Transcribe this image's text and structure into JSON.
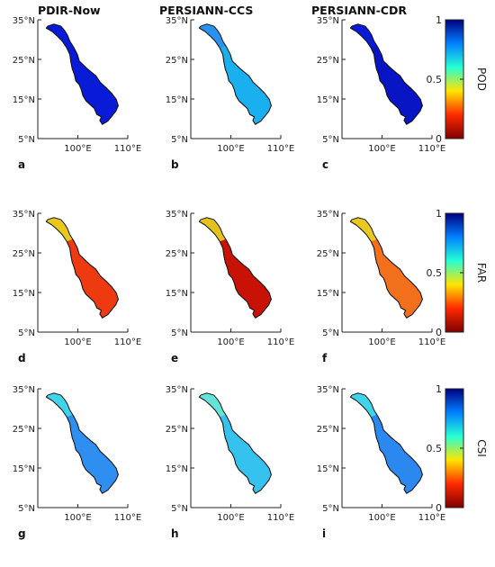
{
  "columns": [
    "PDIR-Now",
    "PERSIANN-CCS",
    "PERSIANN-CDR"
  ],
  "x_ticks": [
    "100°E",
    "110°E"
  ],
  "y_ticks": [
    "35°N",
    "25°N",
    "15°N",
    "5°N"
  ],
  "colorbar_ticks": [
    "1",
    "0.5",
    "0"
  ],
  "colormap": [
    "#7f0000",
    "#ff2a00",
    "#ffe400",
    "#26ffd4",
    "#0080ff",
    "#00007f"
  ],
  "chart_data": [
    {
      "type": "heatmap",
      "metric": "POD",
      "colorbar_label": "POD",
      "clim": [
        0,
        1
      ],
      "lon_lim": [
        92,
        110
      ],
      "lat_lim": [
        5,
        35
      ],
      "panels": [
        {
          "label": "a",
          "product": "PDIR-Now",
          "basin": "#0a1bd8",
          "north": "#0a1bd8"
        },
        {
          "label": "b",
          "product": "PERSIANN-CCS",
          "basin": "#1ab0f0",
          "north": "#2a90f0"
        },
        {
          "label": "c",
          "product": "PERSIANN-CDR",
          "basin": "#0715c4",
          "north": "#0a1bd8"
        }
      ]
    },
    {
      "type": "heatmap",
      "metric": "FAR",
      "colorbar_label": "FAR",
      "clim": [
        0,
        1
      ],
      "lon_lim": [
        92,
        110
      ],
      "lat_lim": [
        5,
        35
      ],
      "panels": [
        {
          "label": "d",
          "product": "PDIR-Now",
          "basin": "#ee3a10",
          "north": "#e8d020"
        },
        {
          "label": "e",
          "product": "PERSIANN-CCS",
          "basin": "#c81206",
          "north": "#e6cc20"
        },
        {
          "label": "f",
          "product": "PERSIANN-CDR",
          "basin": "#f2701c",
          "north": "#e8cc20"
        }
      ]
    },
    {
      "type": "heatmap",
      "metric": "CSI",
      "colorbar_label": "CSI",
      "clim": [
        0,
        1
      ],
      "lon_lim": [
        92,
        110
      ],
      "lat_lim": [
        5,
        35
      ],
      "panels": [
        {
          "label": "g",
          "product": "PDIR-Now",
          "basin": "#2f8ff0",
          "north": "#40d8e8"
        },
        {
          "label": "h",
          "product": "PERSIANN-CCS",
          "basin": "#36c2ee",
          "north": "#66e6d6"
        },
        {
          "label": "i",
          "product": "PERSIANN-CDR",
          "basin": "#2b88ef",
          "north": "#40d8e8"
        }
      ]
    }
  ]
}
